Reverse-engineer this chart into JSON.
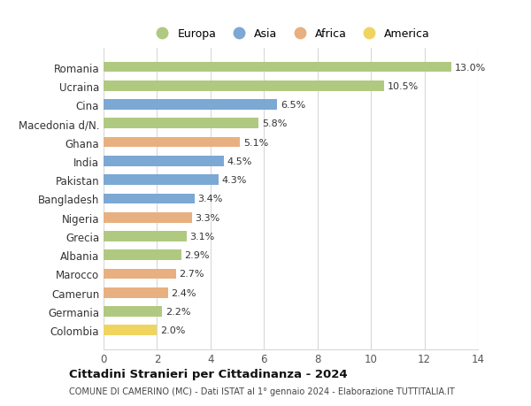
{
  "countries": [
    "Romania",
    "Ucraina",
    "Cina",
    "Macedonia d/N.",
    "Ghana",
    "India",
    "Pakistan",
    "Bangladesh",
    "Nigeria",
    "Grecia",
    "Albania",
    "Marocco",
    "Camerun",
    "Germania",
    "Colombia"
  ],
  "values": [
    13.0,
    10.5,
    6.5,
    5.8,
    5.1,
    4.5,
    4.3,
    3.4,
    3.3,
    3.1,
    2.9,
    2.7,
    2.4,
    2.2,
    2.0
  ],
  "continents": [
    "Europa",
    "Europa",
    "Asia",
    "Europa",
    "Africa",
    "Asia",
    "Asia",
    "Asia",
    "Africa",
    "Europa",
    "Europa",
    "Africa",
    "Africa",
    "Europa",
    "America"
  ],
  "colors": {
    "Europa": "#b0c980",
    "Asia": "#7ca8d4",
    "Africa": "#e8b080",
    "America": "#f0d460"
  },
  "legend_order": [
    "Europa",
    "Asia",
    "Africa",
    "America"
  ],
  "title1": "Cittadini Stranieri per Cittadinanza - 2024",
  "title2": "COMUNE DI CAMERINO (MC) - Dati ISTAT al 1° gennaio 2024 - Elaborazione TUTTITALIA.IT",
  "xlim": [
    0,
    14
  ],
  "xticks": [
    0,
    2,
    4,
    6,
    8,
    10,
    12,
    14
  ],
  "background_color": "#ffffff",
  "grid_color": "#d8d8d8",
  "bar_height": 0.55,
  "label_fontsize": 8.0,
  "ytick_fontsize": 8.5,
  "xtick_fontsize": 8.5
}
